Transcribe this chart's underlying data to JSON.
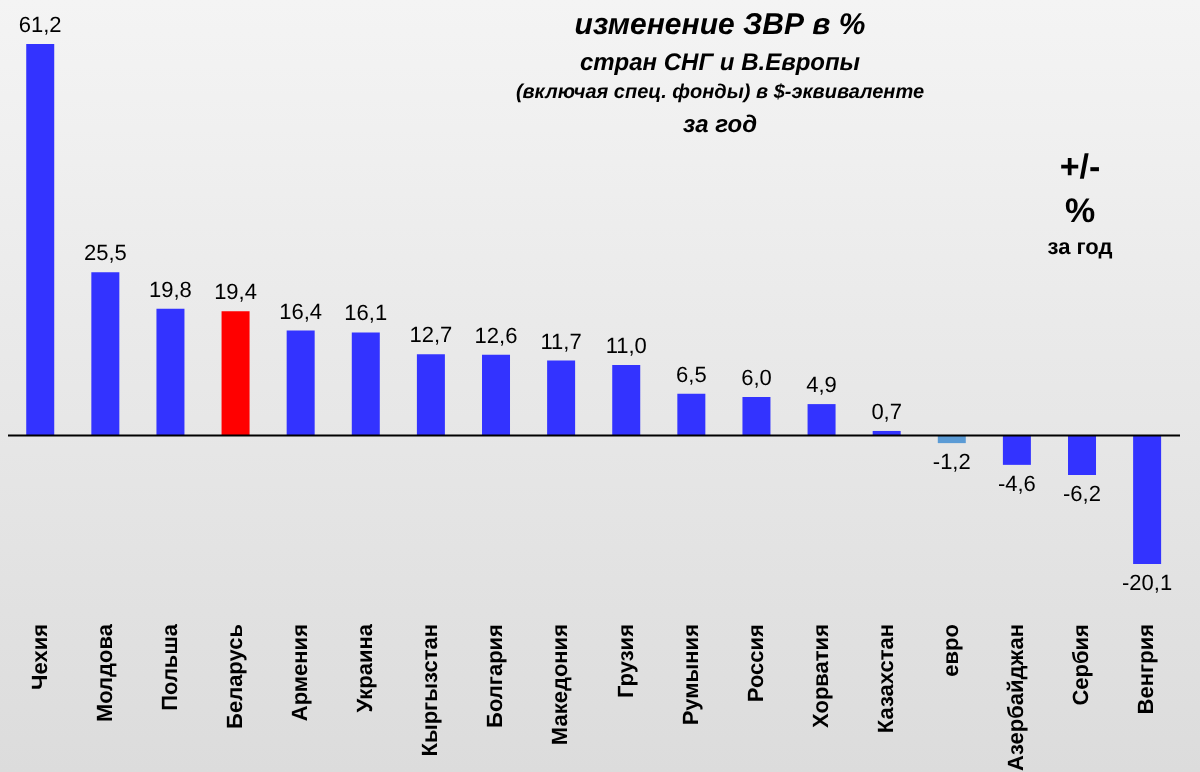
{
  "chart_data": {
    "type": "bar",
    "title": "изменение  ЗВР в %",
    "subtitle": [
      "стран СНГ и В.Европы",
      "(включая  спец. фонды) в $-эквиваленте",
      "за год"
    ],
    "categories": [
      "Чехия",
      "Молдова",
      "Польша",
      "Беларусь",
      "Армения",
      "Украина",
      "Кыргызстан",
      "Болгария",
      "Македония",
      "Грузия",
      "Румыния",
      "Россия",
      "Хорватия",
      "Казахстан",
      "евро",
      "Азербайджан",
      "Сербия",
      "Венгрия"
    ],
    "values": [
      61.2,
      25.5,
      19.8,
      19.4,
      16.4,
      16.1,
      12.7,
      12.6,
      11.7,
      11.0,
      6.5,
      6.0,
      4.9,
      0.7,
      -1.2,
      -4.6,
      -6.2,
      -20.1
    ],
    "value_labels": [
      "61,2",
      "25,5",
      "19,8",
      "19,4",
      "16,4",
      "16,1",
      "12,7",
      "12,6",
      "11,7",
      "11,0",
      "6,5",
      "6,0",
      "4,9",
      "0,7",
      "-1,2",
      "-4,6",
      "-6,2",
      "-20,1"
    ],
    "colors": [
      "#3333ff",
      "#3333ff",
      "#3333ff",
      "#ff0000",
      "#3333ff",
      "#3333ff",
      "#3333ff",
      "#3333ff",
      "#3333ff",
      "#3333ff",
      "#3333ff",
      "#3333ff",
      "#3333ff",
      "#3333ff",
      "#5b9bd5",
      "#3333ff",
      "#3333ff",
      "#3333ff"
    ],
    "annotations": [
      "+/-",
      "%",
      "за год"
    ],
    "legend": false,
    "grid": false
  }
}
